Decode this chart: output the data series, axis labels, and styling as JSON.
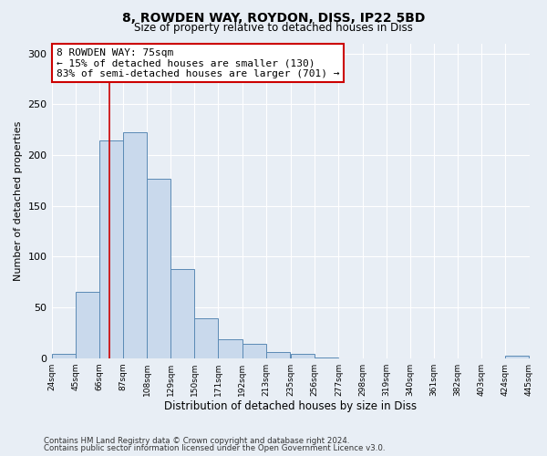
{
  "title": "8, ROWDEN WAY, ROYDON, DISS, IP22 5BD",
  "subtitle": "Size of property relative to detached houses in Diss",
  "xlabel": "Distribution of detached houses by size in Diss",
  "ylabel": "Number of detached properties",
  "footer_lines": [
    "Contains HM Land Registry data © Crown copyright and database right 2024.",
    "Contains public sector information licensed under the Open Government Licence v3.0."
  ],
  "bin_edges": [
    24,
    45,
    66,
    87,
    108,
    129,
    150,
    171,
    192,
    213,
    235,
    256,
    277,
    298,
    319,
    340,
    361,
    382,
    403,
    424,
    445
  ],
  "bin_counts": [
    4,
    65,
    214,
    222,
    177,
    88,
    39,
    19,
    14,
    6,
    4,
    1,
    0,
    0,
    0,
    0,
    0,
    0,
    0,
    2
  ],
  "bar_color": "#c9d9ec",
  "bar_edge_color": "#5b8ab5",
  "property_size": 75,
  "property_line_color": "#cc0000",
  "annotation_title": "8 ROWDEN WAY: 75sqm",
  "annotation_line1": "← 15% of detached houses are smaller (130)",
  "annotation_line2": "83% of semi-detached houses are larger (701) →",
  "annotation_box_color": "#ffffff",
  "annotation_box_edge_color": "#cc0000",
  "ylim": [
    0,
    310
  ],
  "yticks": [
    0,
    50,
    100,
    150,
    200,
    250,
    300
  ],
  "background_color": "#e8eef5",
  "plot_background_color": "#e8eef5",
  "tick_labels": [
    "24sqm",
    "45sqm",
    "66sqm",
    "87sqm",
    "108sqm",
    "129sqm",
    "150sqm",
    "171sqm",
    "192sqm",
    "213sqm",
    "235sqm",
    "256sqm",
    "277sqm",
    "298sqm",
    "319sqm",
    "340sqm",
    "361sqm",
    "382sqm",
    "403sqm",
    "424sqm",
    "445sqm"
  ]
}
